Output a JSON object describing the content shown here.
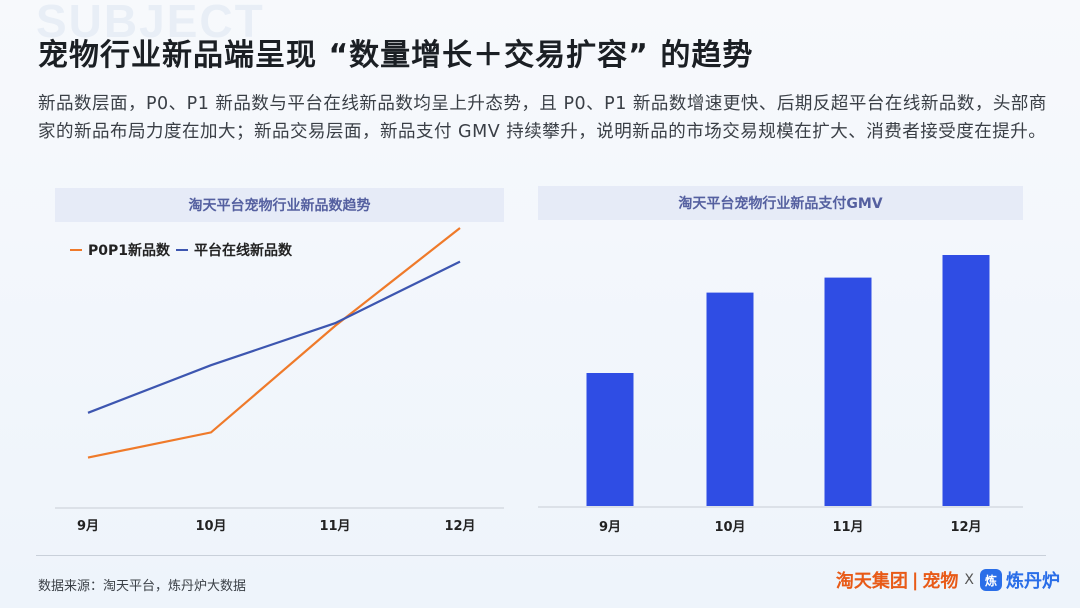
{
  "watermark": "SUBJECT",
  "title": "宠物行业新品端呈现 “数量增长＋交易扩容” 的趋势",
  "description": "新品数层面，P0、P1 新品数与平台在线新品数均呈上升态势，且 P0、P1 新品数增速更快、后期反超平台在线新品数，头部商家的新品布局力度在加大；新品交易层面，新品支付 GMV 持续攀升，说明新品的市场交易规模在扩大、消费者接受度在提升。",
  "footer": {
    "source": "数据来源：淘天平台，炼丹炉大数据",
    "brand_tmall": "淘天集团",
    "brand_sep": "|",
    "brand_pet": "宠物",
    "brand_x": "X",
    "brand_logo": "炼",
    "brand_partner": "炼丹炉"
  },
  "chart_data": [
    {
      "type": "line",
      "title": "淘天平台宠物行业新品数趋势",
      "categories": [
        "9月",
        "10月",
        "11月",
        "12月"
      ],
      "series": [
        {
          "name": "P0P1新品数",
          "color": "#ef7a2a",
          "values": [
            18,
            27,
            65,
            100
          ]
        },
        {
          "name": "平台在线新品数",
          "color": "#3d56b0",
          "values": [
            34,
            51,
            66,
            88
          ]
        }
      ],
      "ylim": [
        0,
        110
      ],
      "grid": false,
      "legend": "top-left"
    },
    {
      "type": "bar",
      "title": "淘天平台宠物行业新品支付GMV",
      "categories": [
        "9月",
        "10月",
        "11月",
        "12月"
      ],
      "values": [
        53,
        85,
        91,
        100
      ],
      "color": "#2f4de4",
      "ylim": [
        0,
        100
      ],
      "grid": false
    }
  ]
}
